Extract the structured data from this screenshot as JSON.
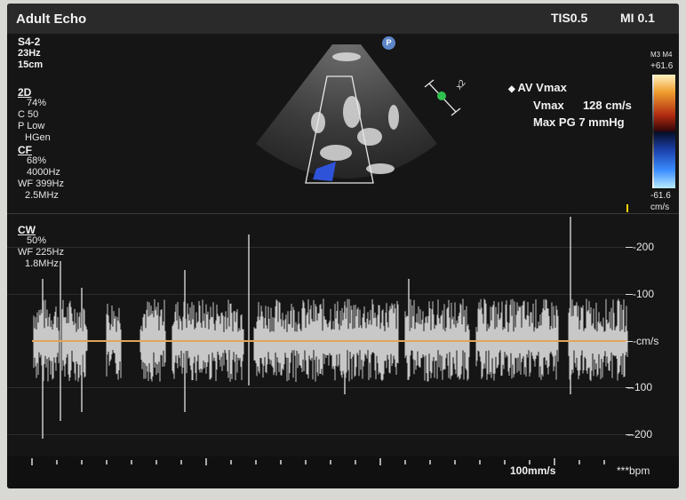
{
  "header": {
    "title": "Adult Echo",
    "tis": "TIS0.5",
    "mi": "MI 0.1"
  },
  "probe": {
    "name": "S4-2",
    "frame_rate": "23Hz",
    "depth": "15cm"
  },
  "settings_2d": {
    "label": "2D",
    "gain": "74%",
    "compression": "C 50",
    "power": "P Low",
    "mode": "HGen"
  },
  "settings_cf": {
    "label": "CF",
    "gain": "68%",
    "prf": "4000Hz",
    "wall_filter": "WF 399Hz",
    "freq": "2.5MHz"
  },
  "settings_cw": {
    "label": "CW",
    "gain": "50%",
    "wall_filter": "WF 225Hz",
    "freq": "1.8MHz"
  },
  "image_markers": {
    "p": "P",
    "zoom": "x2"
  },
  "measurement": {
    "name": "AV Vmax",
    "vmax_label": "Vmax",
    "vmax_value": "128 cm/s",
    "pg_label": "Max PG",
    "pg_value": "7 mmHg"
  },
  "colorbar": {
    "maps": "M3 M4",
    "top": "+61.6",
    "bottom": "-61.6",
    "unit": "cm/s"
  },
  "doppler_scale": {
    "labels": [
      "-200",
      "-100",
      "-cm/s",
      "--100",
      "--200"
    ],
    "values": [
      200,
      100,
      0,
      -100,
      -200
    ]
  },
  "sweep": {
    "speed": "100mm/s",
    "heart_rate": "***bpm"
  },
  "colors": {
    "background": "#151515",
    "baseline": "#e1a55a",
    "marker": "#5d86c8",
    "caliper": "#30c050"
  }
}
